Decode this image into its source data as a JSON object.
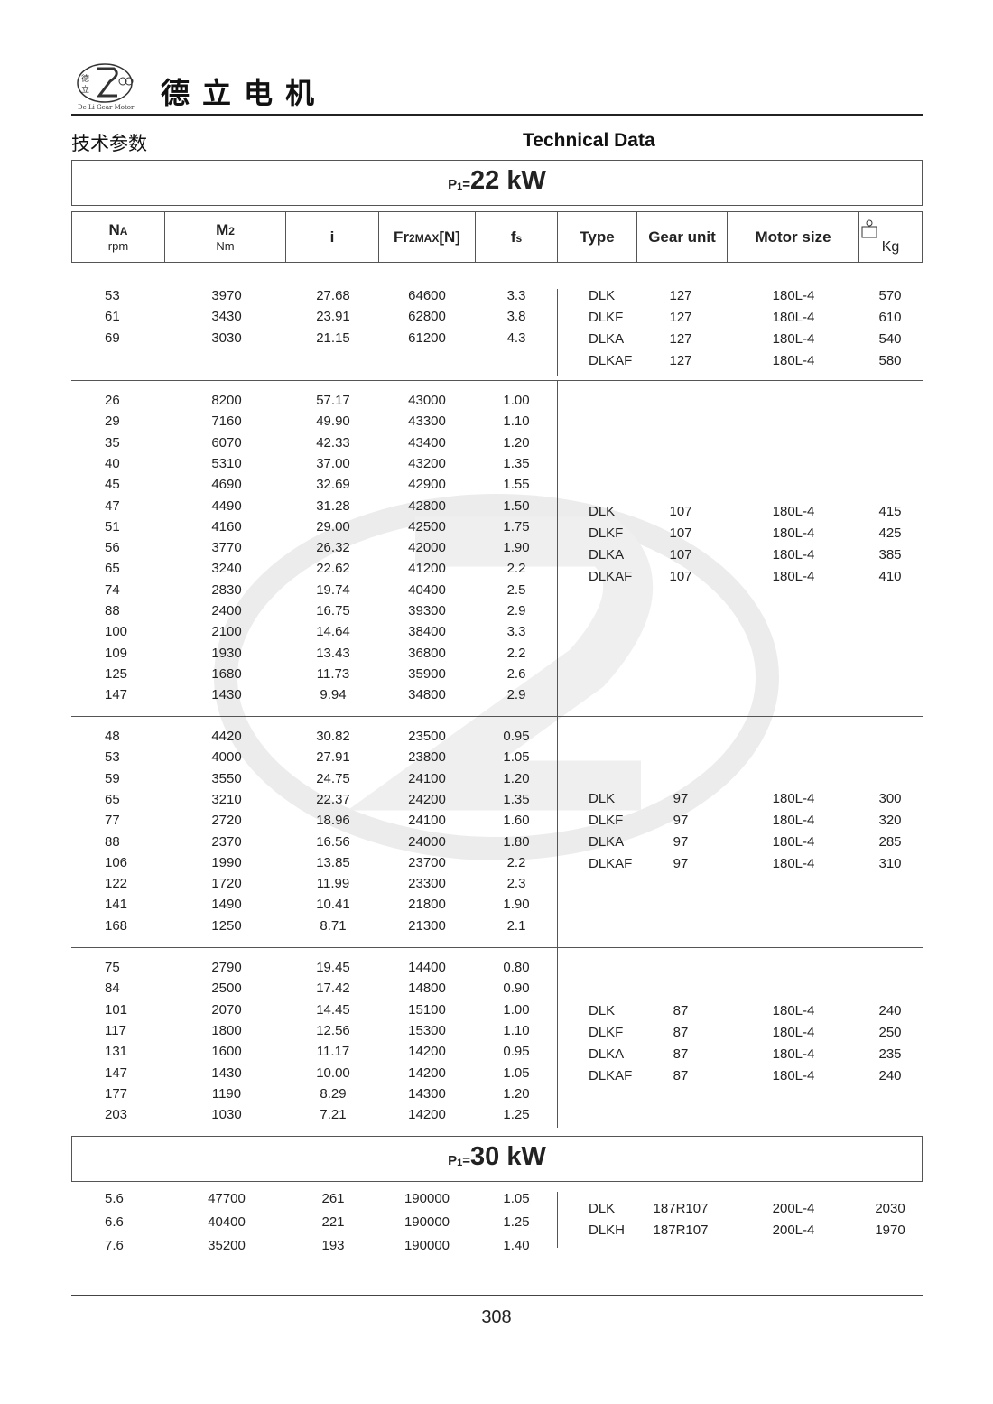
{
  "header": {
    "logo_lettering": "De Li Gear Motor",
    "logo_chars": "德立",
    "brand_name": "德立电机",
    "title_cn": "技术参数",
    "title_en": "Technical Data"
  },
  "columns": {
    "na": "NA",
    "na_main": "N",
    "na_sub": "A",
    "na_unit": "rpm",
    "m2_main": "M",
    "m2_sub": "2",
    "m2_unit": "Nm",
    "i": "i",
    "fr_main": "Fr",
    "fr_sub": "2MAX",
    "fr_tail": "[N]",
    "fs_main": "f",
    "fs_sub": "s",
    "type": "Type",
    "gear_unit": "Gear unit",
    "motor_size": "Motor size",
    "weight_unit": "Kg",
    "weight_icon": "weight-icon"
  },
  "power_blocks": [
    {
      "p_label": "P",
      "p_sub": "1",
      "p_eq": "=",
      "value": "22 kW"
    },
    {
      "p_label": "P",
      "p_sub": "1",
      "p_eq": "=",
      "value": "30 kW"
    }
  ],
  "sections": [
    {
      "rows": [
        [
          "53",
          "3970",
          "27.68",
          "64600",
          "3.3"
        ],
        [
          "61",
          "3430",
          "23.91",
          "62800",
          "3.8"
        ],
        [
          "69",
          "3030",
          "21.15",
          "61200",
          "4.3"
        ]
      ],
      "types": [
        [
          "DLK",
          "127",
          "180L-4",
          "570"
        ],
        [
          "DLKF",
          "127",
          "180L-4",
          "610"
        ],
        [
          "DLKA",
          "127",
          "180L-4",
          "540"
        ],
        [
          "DLKAF",
          "127",
          "180L-4",
          "580"
        ]
      ]
    },
    {
      "rows": [
        [
          "26",
          "8200",
          "57.17",
          "43000",
          "1.00"
        ],
        [
          "29",
          "7160",
          "49.90",
          "43300",
          "1.10"
        ],
        [
          "35",
          "6070",
          "42.33",
          "43400",
          "1.20"
        ],
        [
          "40",
          "5310",
          "37.00",
          "43200",
          "1.35"
        ],
        [
          "45",
          "4690",
          "32.69",
          "42900",
          "1.55"
        ],
        [
          "47",
          "4490",
          "31.28",
          "42800",
          "1.50"
        ],
        [
          "51",
          "4160",
          "29.00",
          "42500",
          "1.75"
        ],
        [
          "56",
          "3770",
          "26.32",
          "42000",
          "1.90"
        ],
        [
          "65",
          "3240",
          "22.62",
          "41200",
          "2.2"
        ],
        [
          "74",
          "2830",
          "19.74",
          "40400",
          "2.5"
        ],
        [
          "88",
          "2400",
          "16.75",
          "39300",
          "2.9"
        ],
        [
          "100",
          "2100",
          "14.64",
          "38400",
          "3.3"
        ],
        [
          "109",
          "1930",
          "13.43",
          "36800",
          "2.2"
        ],
        [
          "125",
          "1680",
          "11.73",
          "35900",
          "2.6"
        ],
        [
          "147",
          "1430",
          "9.94",
          "34800",
          "2.9"
        ]
      ],
      "types": [
        [
          "DLK",
          "107",
          "180L-4",
          "415"
        ],
        [
          "DLKF",
          "107",
          "180L-4",
          "425"
        ],
        [
          "DLKA",
          "107",
          "180L-4",
          "385"
        ],
        [
          "DLKAF",
          "107",
          "180L-4",
          "410"
        ]
      ]
    },
    {
      "rows": [
        [
          "48",
          "4420",
          "30.82",
          "23500",
          "0.95"
        ],
        [
          "53",
          "4000",
          "27.91",
          "23800",
          "1.05"
        ],
        [
          "59",
          "3550",
          "24.75",
          "24100",
          "1.20"
        ],
        [
          "65",
          "3210",
          "22.37",
          "24200",
          "1.35"
        ],
        [
          "77",
          "2720",
          "18.96",
          "24100",
          "1.60"
        ],
        [
          "88",
          "2370",
          "16.56",
          "24000",
          "1.80"
        ],
        [
          "106",
          "1990",
          "13.85",
          "23700",
          "2.2"
        ],
        [
          "122",
          "1720",
          "11.99",
          "23300",
          "2.3"
        ],
        [
          "141",
          "1490",
          "10.41",
          "21800",
          "1.90"
        ],
        [
          "168",
          "1250",
          "8.71",
          "21300",
          "2.1"
        ]
      ],
      "types": [
        [
          "DLK",
          "97",
          "180L-4",
          "300"
        ],
        [
          "DLKF",
          "97",
          "180L-4",
          "320"
        ],
        [
          "DLKA",
          "97",
          "180L-4",
          "285"
        ],
        [
          "DLKAF",
          "97",
          "180L-4",
          "310"
        ]
      ]
    },
    {
      "rows": [
        [
          "75",
          "2790",
          "19.45",
          "14400",
          "0.80"
        ],
        [
          "84",
          "2500",
          "17.42",
          "14800",
          "0.90"
        ],
        [
          "101",
          "2070",
          "14.45",
          "15100",
          "1.00"
        ],
        [
          "117",
          "1800",
          "12.56",
          "15300",
          "1.10"
        ],
        [
          "131",
          "1600",
          "11.17",
          "14200",
          "0.95"
        ],
        [
          "147",
          "1430",
          "10.00",
          "14200",
          "1.05"
        ],
        [
          "177",
          "1190",
          "8.29",
          "14300",
          "1.20"
        ],
        [
          "203",
          "1030",
          "7.21",
          "14200",
          "1.25"
        ]
      ],
      "types": [
        [
          "DLK",
          "87",
          "180L-4",
          "240"
        ],
        [
          "DLKF",
          "87",
          "180L-4",
          "250"
        ],
        [
          "DLKA",
          "87",
          "180L-4",
          "235"
        ],
        [
          "DLKAF",
          "87",
          "180L-4",
          "240"
        ]
      ]
    },
    {
      "rows": [
        [
          "5.6",
          "47700",
          "261",
          "190000",
          "1.05"
        ],
        [
          "6.6",
          "40400",
          "221",
          "190000",
          "1.25"
        ],
        [
          "7.6",
          "35200",
          "193",
          "190000",
          "1.40"
        ]
      ],
      "types": [
        [
          "DLK",
          "187R107",
          "200L-4",
          "2030"
        ],
        [
          "DLKH",
          "187R107",
          "200L-4",
          "1970"
        ]
      ]
    }
  ],
  "footer": {
    "page_number": "308"
  },
  "watermark": {
    "lettering": "De Li Gear Motor"
  }
}
